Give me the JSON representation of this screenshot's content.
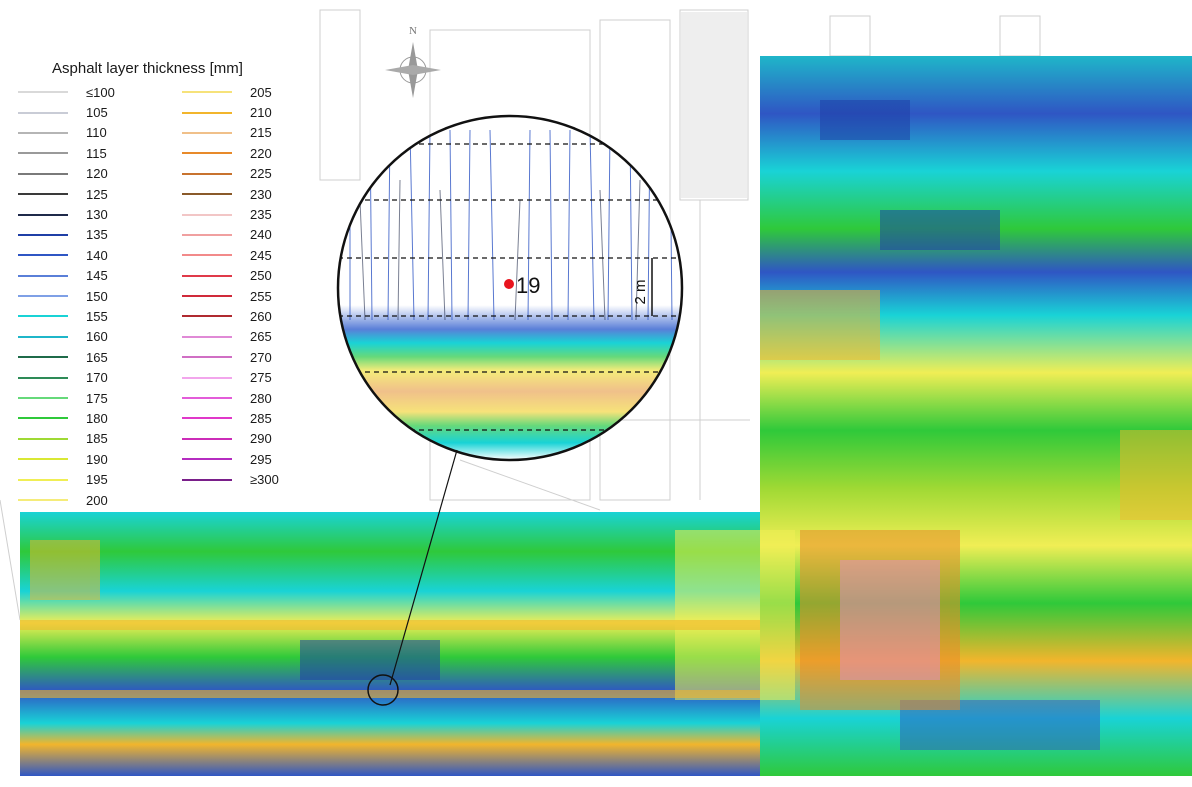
{
  "legend": {
    "title": "Asphalt layer thickness [mm]",
    "left_column": [
      {
        "label": "≤100",
        "color": "#d9d9d9"
      },
      {
        "label": "105",
        "color": "#c9ccd6"
      },
      {
        "label": "110",
        "color": "#b5b5b5"
      },
      {
        "label": "115",
        "color": "#9a9a9a"
      },
      {
        "label": "120",
        "color": "#7a7a7a"
      },
      {
        "label": "125",
        "color": "#3a3a3a"
      },
      {
        "label": "130",
        "color": "#1f2a4a"
      },
      {
        "label": "135",
        "color": "#1f3fa6"
      },
      {
        "label": "140",
        "color": "#2f56c4"
      },
      {
        "label": "145",
        "color": "#5a7fd8"
      },
      {
        "label": "150",
        "color": "#7fa0e6"
      },
      {
        "label": "155",
        "color": "#19d3d6"
      },
      {
        "label": "160",
        "color": "#1fb6c9"
      },
      {
        "label": "165",
        "color": "#1f6b4a"
      },
      {
        "label": "170",
        "color": "#2e8b57"
      },
      {
        "label": "175",
        "color": "#66d97a"
      },
      {
        "label": "180",
        "color": "#2fc93a"
      },
      {
        "label": "185",
        "color": "#9fd934"
      },
      {
        "label": "190",
        "color": "#d9e834"
      },
      {
        "label": "195",
        "color": "#f0ee55"
      },
      {
        "label": "200",
        "color": "#f5ec7a"
      }
    ],
    "right_column": [
      {
        "label": "205",
        "color": "#f6e27a"
      },
      {
        "label": "210",
        "color": "#f2b52c"
      },
      {
        "label": "215",
        "color": "#f0c08a"
      },
      {
        "label": "220",
        "color": "#e88a2a"
      },
      {
        "label": "225",
        "color": "#c8732f"
      },
      {
        "label": "230",
        "color": "#8a5a2a"
      },
      {
        "label": "235",
        "color": "#f2c6c6"
      },
      {
        "label": "240",
        "color": "#f0a0a0"
      },
      {
        "label": "245",
        "color": "#f28a8a"
      },
      {
        "label": "250",
        "color": "#e03a4a"
      },
      {
        "label": "255",
        "color": "#d02a3a"
      },
      {
        "label": "260",
        "color": "#b02a30"
      },
      {
        "label": "265",
        "color": "#e08ad6"
      },
      {
        "label": "270",
        "color": "#d06fc4"
      },
      {
        "label": "275",
        "color": "#f2a6ec"
      },
      {
        "label": "280",
        "color": "#e35cd9"
      },
      {
        "label": "285",
        "color": "#e038c9"
      },
      {
        "label": "290",
        "color": "#cc2cb8"
      },
      {
        "label": "295",
        "color": "#b52cc0"
      },
      {
        "label": "≥300",
        "color": "#7a1f8a"
      }
    ]
  },
  "callout": {
    "point_label": "19",
    "scale_label": "2 m",
    "point_color": "#e8141e"
  },
  "compass": {
    "north_label": "N"
  }
}
